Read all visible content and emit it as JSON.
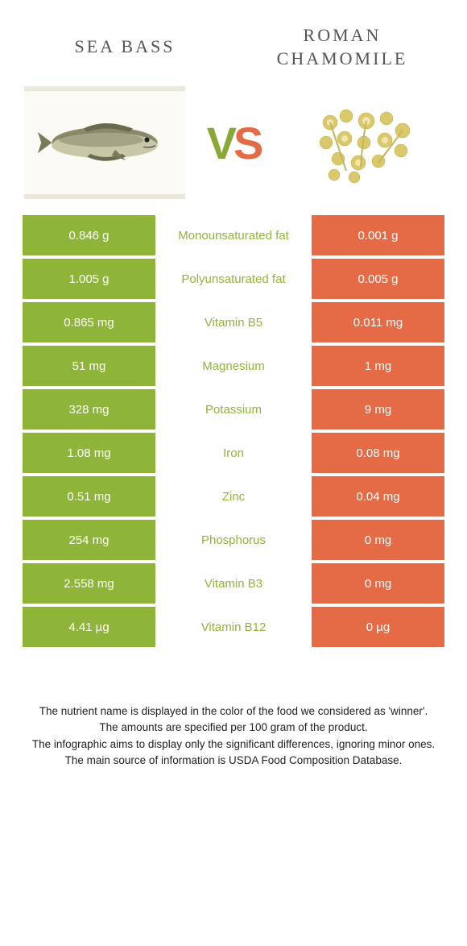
{
  "header": {
    "left_title": "SEA BASS",
    "right_title": "ROMAN CHAMOMILE",
    "vs_v": "V",
    "vs_s": "S"
  },
  "colors": {
    "left_cell": "#8fb43a",
    "right_cell": "#e56b46",
    "mid_green": "#8fb43a",
    "mid_orange": "#e56b46"
  },
  "rows": [
    {
      "left": "0.846 g",
      "mid": "Monounsaturated fat",
      "winner": "green",
      "right": "0.001 g"
    },
    {
      "left": "1.005 g",
      "mid": "Polyunsaturated fat",
      "winner": "green",
      "right": "0.005 g"
    },
    {
      "left": "0.865 mg",
      "mid": "Vitamin B5",
      "winner": "green",
      "right": "0.011 mg"
    },
    {
      "left": "51 mg",
      "mid": "Magnesium",
      "winner": "green",
      "right": "1 mg"
    },
    {
      "left": "328 mg",
      "mid": "Potassium",
      "winner": "green",
      "right": "9 mg"
    },
    {
      "left": "1.08 mg",
      "mid": "Iron",
      "winner": "green",
      "right": "0.08 mg"
    },
    {
      "left": "0.51 mg",
      "mid": "Zinc",
      "winner": "green",
      "right": "0.04 mg"
    },
    {
      "left": "254 mg",
      "mid": "Phosphorus",
      "winner": "green",
      "right": "0 mg"
    },
    {
      "left": "2.558 mg",
      "mid": "Vitamin B3",
      "winner": "green",
      "right": "0 mg"
    },
    {
      "left": "4.41 µg",
      "mid": "Vitamin B12",
      "winner": "green",
      "right": "0 µg"
    }
  ],
  "footer": {
    "line1": "The nutrient name is displayed in the color of the food we considered as 'winner'.",
    "line2": "The amounts are specified per 100 gram of the product.",
    "line3": "The infographic aims to display only the significant differences, ignoring minor ones.",
    "line4": "The main source of information is USDA Food Composition Database."
  }
}
